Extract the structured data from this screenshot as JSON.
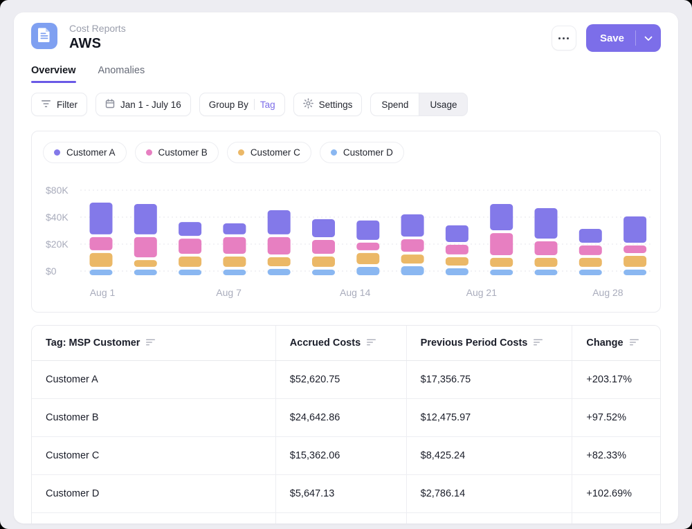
{
  "header": {
    "breadcrumb": "Cost Reports",
    "title": "AWS",
    "save_label": "Save"
  },
  "tabs": [
    {
      "label": "Overview",
      "active": true
    },
    {
      "label": "Anomalies",
      "active": false
    }
  ],
  "toolbar": {
    "filter": {
      "label": "Filter"
    },
    "date_range": {
      "label": "Jan 1 - July 16"
    },
    "group_by": {
      "label": "Group By",
      "value": "Tag"
    },
    "settings": {
      "label": "Settings"
    },
    "mode_toggle": {
      "options": [
        "Spend",
        "Usage"
      ],
      "selected": "Spend"
    }
  },
  "chart_data": {
    "type": "bar",
    "stacked": true,
    "unit": "USD",
    "grid": "horizontal-dotted",
    "legend_position": "top",
    "y_ticks": [
      {
        "label": "$80K",
        "value": 80000
      },
      {
        "label": "$40K",
        "value": 40000
      },
      {
        "label": "$20K",
        "value": 20000
      },
      {
        "label": "$0",
        "value": 0
      }
    ],
    "x_tick_labels": [
      "Aug 1",
      "Aug 7",
      "Aug 14",
      "Aug 21",
      "Aug 28"
    ],
    "bar_count": 13,
    "stack_order_bottom_to_top": [
      "Customer D",
      "Customer C",
      "Customer B",
      "Customer A"
    ],
    "series": [
      {
        "name": "Customer A",
        "color": "#8379E9",
        "values": [
          37400,
          35300,
          12300,
          10200,
          26100,
          15400,
          16400,
          21600,
          14400,
          32300,
          32300,
          12300,
          23100
        ]
      },
      {
        "name": "Customer B",
        "color": "#E77FC1",
        "values": [
          11800,
          17000,
          13300,
          14400,
          14900,
          12300,
          7700,
          11300,
          9200,
          18400,
          12300,
          9200,
          7700
        ]
      },
      {
        "name": "Customer C",
        "color": "#EBB867",
        "values": [
          12300,
          7100,
          9700,
          9700,
          8700,
          9700,
          10300,
          8700,
          8200,
          8700,
          8700,
          8700,
          10200
        ]
      },
      {
        "name": "Customer D",
        "color": "#8AB7F1",
        "values": [
          2100,
          2100,
          2100,
          2100,
          2600,
          2100,
          4100,
          4600,
          3100,
          2100,
          2100,
          2100,
          2100
        ]
      }
    ]
  },
  "table": {
    "columns": [
      {
        "label": "Tag: MSP Customer",
        "sortable": true
      },
      {
        "label": "Accrued Costs",
        "sortable": true
      },
      {
        "label": "Previous Period Costs",
        "sortable": true
      },
      {
        "label": "Change",
        "sortable": true
      }
    ],
    "column_widths_pct": [
      38.8,
      20.8,
      26.4,
      14.0
    ],
    "rows": [
      {
        "name": "Customer A",
        "accrued": "$52,620.75",
        "previous": "$17,356.75",
        "change": "+203.17%"
      },
      {
        "name": "Customer B",
        "accrued": "$24,642.86",
        "previous": "$12,475.97",
        "change": "+97.52%"
      },
      {
        "name": "Customer C",
        "accrued": "$15,362.06",
        "previous": "$8,425.24",
        "change": "+82.33%"
      },
      {
        "name": "Customer D",
        "accrued": "$5,647.13",
        "previous": "$2,786.14",
        "change": "+102.69%"
      }
    ]
  }
}
